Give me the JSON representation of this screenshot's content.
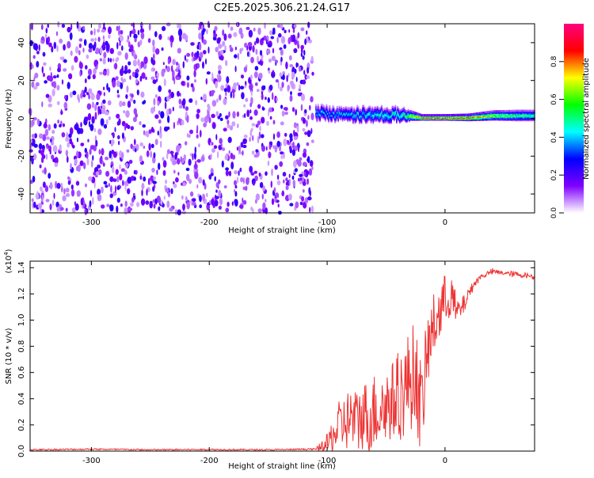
{
  "title": "C2E5.2025.306.21.24.G17",
  "chart_data": [
    {
      "type": "heatmap",
      "title": "C2E5.2025.306.21.24.G17",
      "xlabel": "Height of straight line (km)",
      "ylabel": "Frequency (Hz)",
      "xlim": [
        -352,
        76
      ],
      "ylim": [
        -50,
        50
      ],
      "xticks": [
        -300,
        -200,
        -100,
        0
      ],
      "xtick_labels": [
        "-300",
        "-200",
        "-100",
        "0"
      ],
      "yticks": [
        -40,
        -20,
        0,
        20,
        40
      ],
      "ytick_labels": [
        "-40",
        "-20",
        "0",
        "20",
        "40"
      ],
      "noise_region_x": [
        -352,
        -112
      ],
      "signal_band": [
        {
          "x": -110,
          "f_center": 3,
          "f_halfwidth": 3.5,
          "amplitude": 0.4
        },
        {
          "x": -90,
          "f_center": 2,
          "f_halfwidth": 3,
          "amplitude": 0.45
        },
        {
          "x": -70,
          "f_center": 2,
          "f_halfwidth": 3.5,
          "amplitude": 0.45
        },
        {
          "x": -50,
          "f_center": 2,
          "f_halfwidth": 3.5,
          "amplitude": 0.5
        },
        {
          "x": -35,
          "f_center": 2,
          "f_halfwidth": 3,
          "amplitude": 0.55
        },
        {
          "x": -20,
          "f_center": 0.5,
          "f_halfwidth": 1.2,
          "amplitude": 0.95
        },
        {
          "x": 0,
          "f_center": 0.5,
          "f_halfwidth": 1.2,
          "amplitude": 1.0
        },
        {
          "x": 20,
          "f_center": 0.5,
          "f_halfwidth": 1.5,
          "amplitude": 0.95
        },
        {
          "x": 40,
          "f_center": 1.5,
          "f_halfwidth": 2.2,
          "amplitude": 0.7
        },
        {
          "x": 60,
          "f_center": 1.5,
          "f_halfwidth": 2.5,
          "amplitude": 0.6
        },
        {
          "x": 76,
          "f_center": 1.5,
          "f_halfwidth": 2.5,
          "amplitude": 0.55
        }
      ],
      "colorbar": {
        "label": "Normalized spectral amplitude",
        "range": [
          0,
          1
        ],
        "ticks": [
          0.0,
          0.2,
          0.4,
          0.6,
          0.8
        ],
        "tick_labels": [
          "0.0",
          "0.2",
          "0.4",
          "0.6",
          "0.8"
        ],
        "colors": [
          "#ffffff",
          "#7f00ff",
          "#0000ff",
          "#00ffff",
          "#00ff00",
          "#ffff00",
          "#ff0000",
          "#ff0080"
        ]
      }
    },
    {
      "type": "line",
      "xlabel": "Height of straight line (km)",
      "ylabel": "SNR (10 * v/v)",
      "scale_label": "(x10",
      "scale_exponent": "4",
      "scale_close": ")",
      "xlim": [
        -352,
        76
      ],
      "ylim": [
        0,
        1.45
      ],
      "xticks": [
        -300,
        -200,
        -100,
        0
      ],
      "xtick_labels": [
        "-300",
        "-200",
        "-100",
        "0"
      ],
      "yticks": [
        0.0,
        0.2,
        0.4,
        0.6,
        0.8,
        1.0,
        1.2,
        1.4
      ],
      "ytick_labels": [
        "0.0",
        "0.2",
        "0.4",
        "0.6",
        "0.8",
        "1.0",
        "1.2",
        "1.4"
      ],
      "line_color": "#ee3333",
      "series": [
        {
          "name": "SNR",
          "x": [
            -352,
            -300,
            -250,
            -200,
            -150,
            -110,
            -100,
            -95,
            -90,
            -85,
            -80,
            -75,
            -70,
            -65,
            -60,
            -55,
            -50,
            -45,
            -40,
            -35,
            -30,
            -25,
            -20,
            -15,
            -10,
            -5,
            0,
            5,
            10,
            15,
            20,
            25,
            30,
            40,
            50,
            60,
            70,
            76
          ],
          "y": [
            0.01,
            0.015,
            0.01,
            0.012,
            0.01,
            0.015,
            0.05,
            0.12,
            0.18,
            0.22,
            0.25,
            0.22,
            0.28,
            0.25,
            0.3,
            0.33,
            0.35,
            0.38,
            0.42,
            0.45,
            0.55,
            0.6,
            0.3,
            0.75,
            0.95,
            1.05,
            1.15,
            1.2,
            1.05,
            1.1,
            1.2,
            1.28,
            1.33,
            1.37,
            1.36,
            1.35,
            1.34,
            1.33
          ],
          "fluctuation": [
            0.0,
            0.0,
            0.0,
            0.0,
            0.0,
            0.0,
            0.08,
            0.15,
            0.2,
            0.22,
            0.25,
            0.25,
            0.28,
            0.28,
            0.3,
            0.3,
            0.3,
            0.3,
            0.35,
            0.35,
            0.4,
            0.4,
            0.35,
            0.3,
            0.25,
            0.25,
            0.2,
            0.18,
            0.12,
            0.08,
            0.05,
            0.03,
            0.02,
            0.02,
            0.02,
            0.02,
            0.02,
            0.02
          ]
        }
      ]
    }
  ]
}
